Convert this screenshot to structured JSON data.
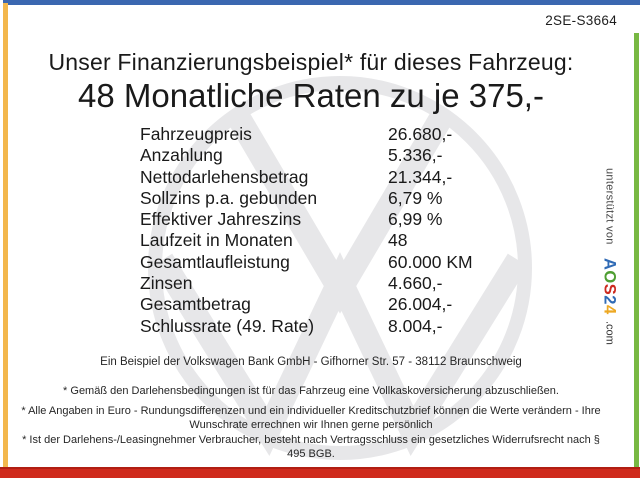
{
  "header": {
    "doc_code": "2SE-S3664"
  },
  "title": "Unser Finanzierungsbeispiel* für dieses Fahrzeug:",
  "subtitle": "48 Monatliche Raten zu je 375,-",
  "finance_table": {
    "rows": [
      {
        "label": "Fahrzeugpreis",
        "value": "26.680,-"
      },
      {
        "label": "Anzahlung",
        "value": "5.336,-"
      },
      {
        "label": "Nettodarlehensbetrag",
        "value": "21.344,-"
      },
      {
        "label": "Sollzins p.a. gebunden",
        "value": "6,79 %"
      },
      {
        "label": "Effektiver Jahreszins",
        "value": "6,99 %"
      },
      {
        "label": "Laufzeit in Monaten",
        "value": "48"
      },
      {
        "label": "Gesamtlaufleistung",
        "value": "60.000 KM"
      },
      {
        "label": "Zinsen",
        "value": "4.660,-"
      },
      {
        "label": "Gesamtbetrag",
        "value": "26.004,-"
      },
      {
        "label": "Schlussrate (49. Rate)",
        "value": "8.004,-"
      }
    ]
  },
  "footer": {
    "bank_line": "Ein Beispiel der Volkswagen Bank GmbH - Gifhorner Str. 57 - 38112 Braunschweig",
    "disclaimers": [
      "* Gemäß den Darlehensbedingungen ist für das Fahrzeug eine Vollkaskoversicherung abzuschließen.",
      "* Alle Angaben in Euro - Rundungsdifferenzen und ein individueller Kreditschutzbrief können die Werte verändern - Ihre Wunschrate errechnen wir Ihnen gerne persönlich",
      "* Ist der Darlehens-/Leasingnehmer Verbraucher, besteht nach Vertragsschluss ein gesetzliches Widerrufsrecht nach § 495 BGB."
    ]
  },
  "sidebar": {
    "supported_by": "unterstützt von",
    "logo_letters": [
      {
        "char": "A",
        "color": "#2f6ab5"
      },
      {
        "char": "O",
        "color": "#4f9e32"
      },
      {
        "char": "S",
        "color": "#cc2a1f"
      },
      {
        "char": "2",
        "color": "#2f6ab5"
      },
      {
        "char": "4",
        "color": "#eda823"
      }
    ],
    "logo_suffix": ".com"
  },
  "watermark": {
    "icon": "vw-logo"
  },
  "colors": {
    "bar_top": "#3b67b0",
    "bar_left": "#f3b74c",
    "bar_right": "#78b843",
    "bar_bottom": "#cf2a1c",
    "watermark": "#e7e7e9",
    "text": "#1a1a1a"
  }
}
